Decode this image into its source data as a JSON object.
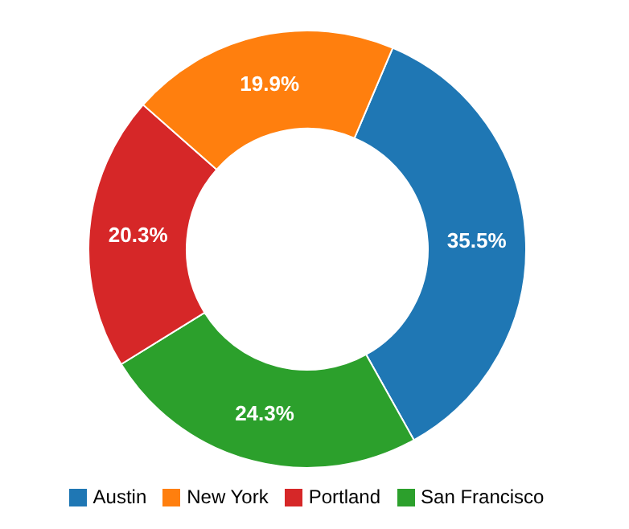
{
  "chart_data": {
    "type": "donut",
    "categories": [
      "Austin",
      "San Francisco",
      "Portland",
      "New York"
    ],
    "values": [
      35.5,
      24.3,
      20.3,
      19.9
    ],
    "colors": [
      "#1f77b4",
      "#2ca02c",
      "#d62728",
      "#ff7f0e"
    ],
    "value_labels": [
      "35.5%",
      "24.3%",
      "20.3%",
      "19.9%"
    ],
    "legend": "bottom"
  }
}
